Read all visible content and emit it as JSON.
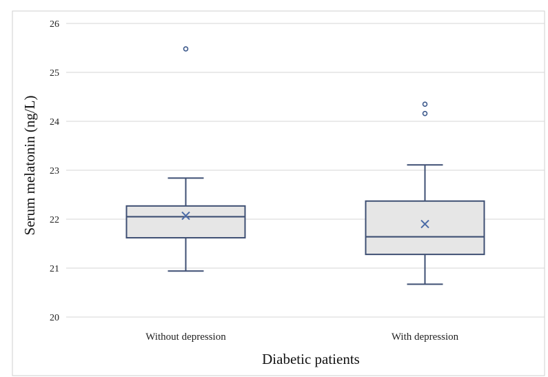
{
  "chart_data": {
    "type": "box",
    "title": "",
    "xlabel": "Diabetic patients",
    "ylabel": "Serum melatonin (ng/L)",
    "ylim": [
      20,
      26
    ],
    "yticks": [
      "20",
      "21",
      "22",
      "23",
      "24",
      "25",
      "26"
    ],
    "grid": true,
    "legend": "none",
    "categories": [
      "Without depression",
      "With depression"
    ],
    "boxes": [
      {
        "category": "Without depression",
        "min": 20.94,
        "q1": 21.62,
        "median": 22.05,
        "q3": 22.27,
        "max": 22.84,
        "mean": 22.07,
        "outliers": [
          25.48
        ]
      },
      {
        "category": "With depression",
        "min": 20.67,
        "q1": 21.28,
        "median": 21.64,
        "q3": 22.37,
        "max": 23.11,
        "mean": 21.9,
        "outliers": [
          24.35,
          24.16
        ]
      }
    ],
    "colors": {
      "box_fill": "#e6e6e6",
      "box_stroke": "#3e4f73",
      "outlier": "#3e5a8c"
    }
  }
}
